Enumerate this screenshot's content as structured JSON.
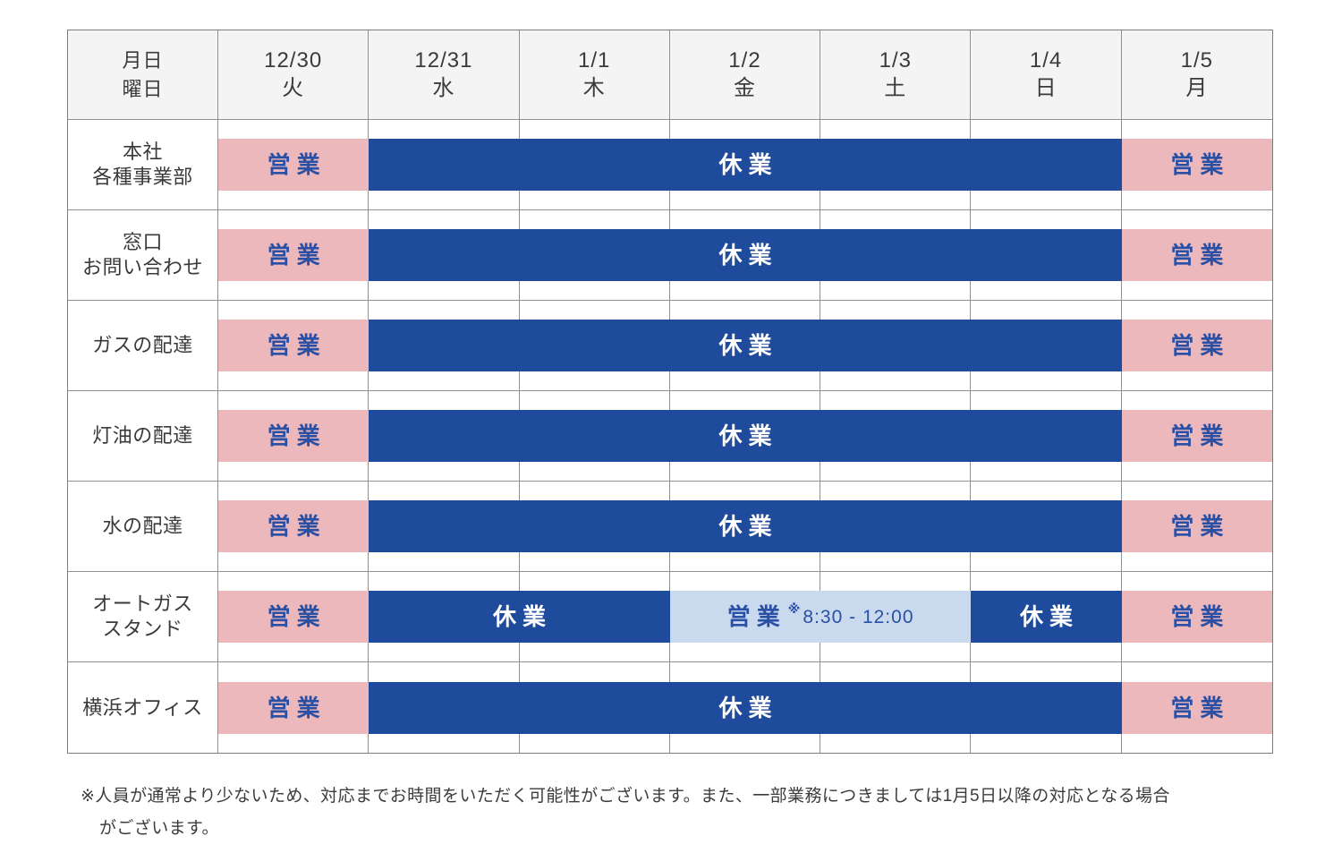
{
  "colors": {
    "open_bg": "#edb8bb",
    "closed_bg": "#1f4b9d",
    "limited_bg": "#c9daef",
    "status_text_blue": "#2a50a5",
    "closed_text": "#ffffff",
    "header_bg": "#f4f4f4",
    "label_text": "#3a3a3a"
  },
  "table": {
    "corner": {
      "line1": "月日",
      "line2": "曜日"
    },
    "date_columns": [
      {
        "date": "12/30",
        "day": "火"
      },
      {
        "date": "12/31",
        "day": "水"
      },
      {
        "date": "1/1",
        "day": "木"
      },
      {
        "date": "1/2",
        "day": "金"
      },
      {
        "date": "1/3",
        "day": "土"
      },
      {
        "date": "1/4",
        "day": "日"
      },
      {
        "date": "1/5",
        "day": "月"
      }
    ],
    "rows": [
      {
        "name": "head-office",
        "label_lines": [
          "本社",
          "各種事業部"
        ],
        "segments": [
          {
            "status": "open",
            "span": 1,
            "text": "営業"
          },
          {
            "status": "closed",
            "span": 5,
            "text": "休業"
          },
          {
            "status": "open",
            "span": 1,
            "text": "営業"
          }
        ]
      },
      {
        "name": "inquiry-counter",
        "label_lines": [
          "窓口",
          "お問い合わせ"
        ],
        "segments": [
          {
            "status": "open",
            "span": 1,
            "text": "営業"
          },
          {
            "status": "closed",
            "span": 5,
            "text": "休業"
          },
          {
            "status": "open",
            "span": 1,
            "text": "営業"
          }
        ]
      },
      {
        "name": "gas-delivery",
        "label_lines": [
          "ガスの配達"
        ],
        "segments": [
          {
            "status": "open",
            "span": 1,
            "text": "営業"
          },
          {
            "status": "closed",
            "span": 5,
            "text": "休業"
          },
          {
            "status": "open",
            "span": 1,
            "text": "営業"
          }
        ]
      },
      {
        "name": "kerosene-delivery",
        "label_lines": [
          "灯油の配達"
        ],
        "segments": [
          {
            "status": "open",
            "span": 1,
            "text": "営業"
          },
          {
            "status": "closed",
            "span": 5,
            "text": "休業"
          },
          {
            "status": "open",
            "span": 1,
            "text": "営業"
          }
        ]
      },
      {
        "name": "water-delivery",
        "label_lines": [
          "水の配達"
        ],
        "segments": [
          {
            "status": "open",
            "span": 1,
            "text": "営業"
          },
          {
            "status": "closed",
            "span": 5,
            "text": "休業"
          },
          {
            "status": "open",
            "span": 1,
            "text": "営業"
          }
        ]
      },
      {
        "name": "autogas-stand",
        "label_lines": [
          "オートガス",
          "スタンド"
        ],
        "segments": [
          {
            "status": "open",
            "span": 1,
            "text": "営業"
          },
          {
            "status": "closed",
            "span": 2,
            "text": "休業"
          },
          {
            "status": "limited",
            "span": 2,
            "text": "営業",
            "note_mark": "※",
            "note_time": "8:30 - 12:00"
          },
          {
            "status": "closed",
            "span": 1,
            "text": "休業"
          },
          {
            "status": "open",
            "span": 1,
            "text": "営業"
          }
        ]
      },
      {
        "name": "yokohama-office",
        "label_lines": [
          "横浜オフィス"
        ],
        "segments": [
          {
            "status": "open",
            "span": 1,
            "text": "営業"
          },
          {
            "status": "closed",
            "span": 5,
            "text": "休業"
          },
          {
            "status": "open",
            "span": 1,
            "text": "営業"
          }
        ]
      }
    ]
  },
  "footnote": {
    "line1": "※人員が通常より少ないため、対応までお時間をいただく可能性がございます。また、一部業務につきましては1月5日以降の対応となる場合",
    "line2": "がございます。"
  }
}
